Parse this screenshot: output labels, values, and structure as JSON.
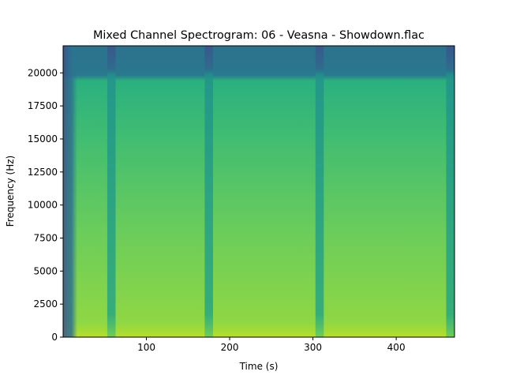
{
  "chart_data": {
    "type": "heatmap",
    "title": "Mixed Channel Spectrogram: 06 - Veasna - Showdown.flac",
    "xlabel": "Time (s)",
    "ylabel": "Frequency (Hz)",
    "xlim": [
      0,
      470
    ],
    "ylim": [
      0,
      22050
    ],
    "xticks": [
      100,
      200,
      300,
      400
    ],
    "yticks": [
      0,
      2500,
      5000,
      7500,
      10000,
      12500,
      15000,
      17500,
      20000
    ],
    "colormap": "viridis",
    "grid": false,
    "quiet_sections_s": [
      {
        "start": 53,
        "end": 63
      },
      {
        "start": 170,
        "end": 180
      },
      {
        "start": 303,
        "end": 313
      },
      {
        "start": 460,
        "end": 470
      }
    ],
    "lowpass_cutoff_hz": 20000,
    "colors": {
      "high_energy": "#b5de2b",
      "mid_energy": "#5ec962",
      "low_energy": "#21918c",
      "quiet": "#2c728e",
      "silence": "#3b528b"
    }
  }
}
